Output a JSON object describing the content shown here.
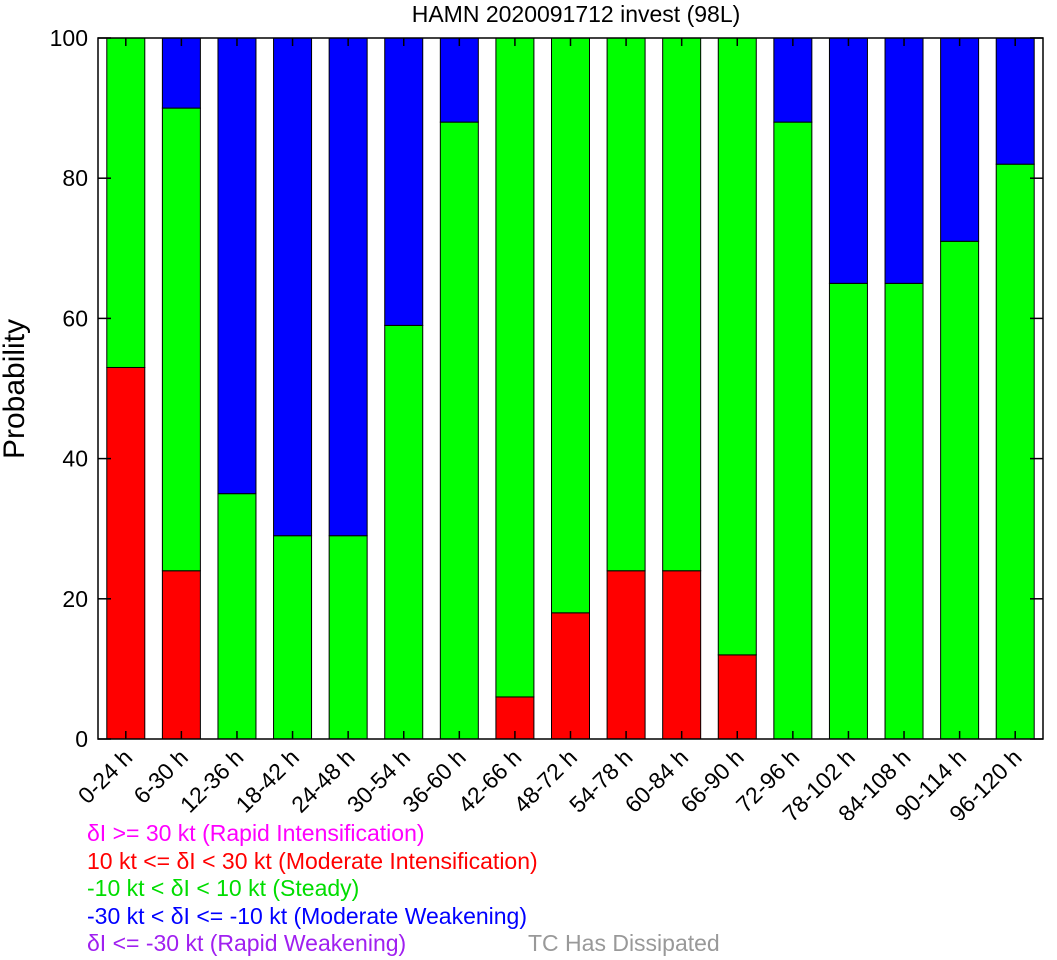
{
  "chart_data": {
    "type": "bar",
    "stacked": true,
    "title": "HAMN 2020091712 invest (98L)",
    "ylabel": "Probability",
    "xlabel": "",
    "ylim": [
      0,
      100
    ],
    "yticks": [
      "0",
      "20",
      "40",
      "60",
      "80",
      "100"
    ],
    "grid": false,
    "categories": [
      "0-24 h",
      "6-30 h",
      "12-36 h",
      "18-42 h",
      "24-48 h",
      "30-54 h",
      "36-60 h",
      "42-66 h",
      "48-72 h",
      "54-78 h",
      "60-84 h",
      "66-90 h",
      "72-96 h",
      "78-102 h",
      "84-108 h",
      "90-114 h",
      "96-120 h"
    ],
    "series": [
      {
        "key": "mi",
        "color": "#ff0000",
        "values": [
          53,
          24,
          0,
          0,
          0,
          0,
          0,
          6,
          18,
          24,
          24,
          12,
          0,
          0,
          0,
          0,
          0
        ]
      },
      {
        "key": "st",
        "color": "#00ff00",
        "values": [
          47,
          66,
          35,
          29,
          29,
          59,
          88,
          94,
          82,
          76,
          76,
          88,
          88,
          65,
          65,
          71,
          82
        ]
      },
      {
        "key": "mw",
        "color": "#0000ff",
        "values": [
          0,
          10,
          65,
          71,
          71,
          41,
          12,
          0,
          0,
          0,
          0,
          0,
          12,
          35,
          35,
          29,
          18
        ]
      }
    ]
  },
  "legend": {
    "entries": [
      {
        "text": "δI >= 30 kt (Rapid Intensification)",
        "color": "#ff00ff"
      },
      {
        "text": "10 kt <= δI < 30 kt (Moderate Intensification)",
        "color": "#ff0000"
      },
      {
        "text": "-10 kt < δI < 10 kt (Steady)",
        "color": "#00dd00"
      },
      {
        "text": "-30 kt < δI <= -10 kt (Moderate Weakening)",
        "color": "#0000ff"
      },
      {
        "text": "δI <= -30 kt (Rapid Weakening)",
        "color": "#a020f0"
      }
    ],
    "dissipated": {
      "text": "TC Has Dissipated",
      "color": "#999999"
    }
  }
}
